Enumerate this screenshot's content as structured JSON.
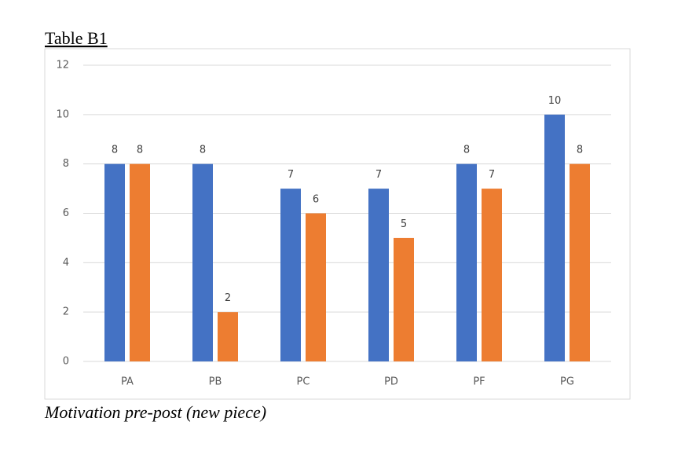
{
  "chart_data": {
    "type": "bar",
    "title": "Table B1",
    "caption": "Motivation pre-post (new piece)",
    "categories": [
      "PA",
      "PB",
      "PC",
      "PD",
      "PF",
      "PG"
    ],
    "series": [
      {
        "color": "#4472c4",
        "values": [
          8,
          8,
          7,
          7,
          8,
          10
        ]
      },
      {
        "color": "#ed7d31",
        "values": [
          8,
          2,
          6,
          5,
          7,
          8
        ]
      }
    ],
    "ylim": [
      0,
      12
    ],
    "yticks": [
      0,
      2,
      4,
      6,
      8,
      10,
      12
    ],
    "grid": true
  }
}
